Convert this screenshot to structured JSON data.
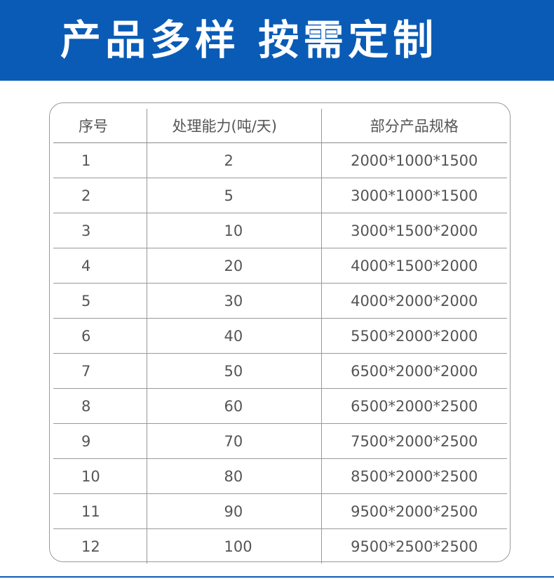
{
  "header": {
    "title": "产品多样 按需定制"
  },
  "table": {
    "columns": [
      "序号",
      "处理能力(吨/天)",
      "部分产品规格"
    ],
    "rows": [
      [
        1,
        2,
        "2000*1000*1500"
      ],
      [
        2,
        5,
        "3000*1000*1500"
      ],
      [
        3,
        10,
        "3000*1500*2000"
      ],
      [
        4,
        20,
        "4000*1500*2000"
      ],
      [
        5,
        30,
        "4000*2000*2000"
      ],
      [
        6,
        40,
        "5500*2000*2000"
      ],
      [
        7,
        50,
        "6500*2000*2000"
      ],
      [
        8,
        60,
        "6500*2000*2500"
      ],
      [
        9,
        70,
        "7500*2000*2500"
      ],
      [
        10,
        80,
        "8500*2000*2500"
      ],
      [
        11,
        90,
        "9500*2000*2500"
      ],
      [
        12,
        100,
        "9500*2500*2500"
      ]
    ]
  }
}
